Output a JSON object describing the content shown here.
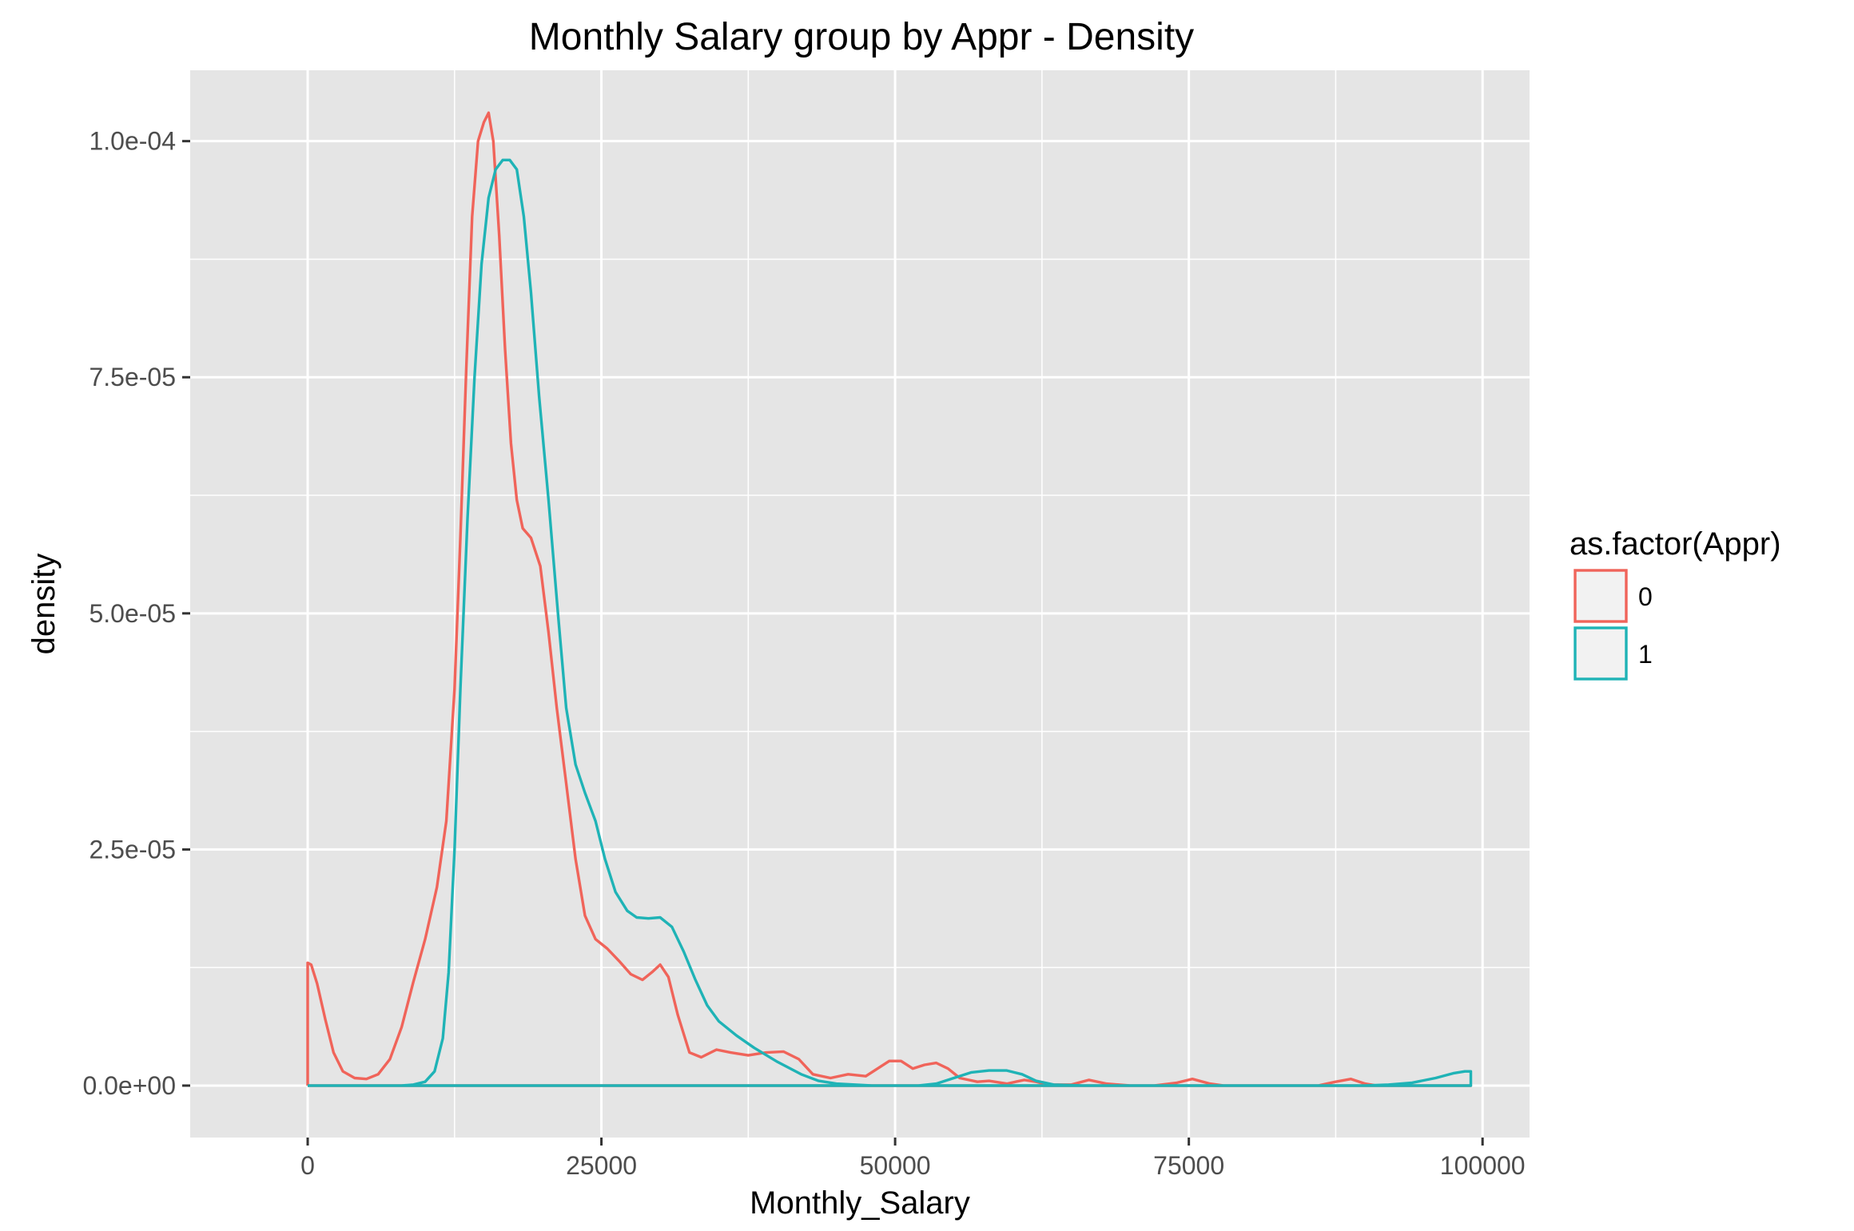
{
  "chart_data": {
    "type": "line",
    "title": "Monthly Salary group by Appr - Density",
    "xlabel": "Monthly_Salary",
    "ylabel": "density",
    "xlim": [
      -10000,
      104000
    ],
    "ylim": [
      -5.5e-06,
      0.0001075
    ],
    "x_ticks": [
      0,
      25000,
      50000,
      75000,
      100000
    ],
    "x_tick_labels": [
      "0",
      "25000",
      "50000",
      "75000",
      "100000"
    ],
    "y_ticks": [
      0,
      2.5e-05,
      5e-05,
      7.5e-05,
      0.0001
    ],
    "y_tick_labels": [
      "0.0e+00",
      "2.5e-05",
      "5.0e-05",
      "7.5e-05",
      "1.0e-04"
    ],
    "grid": true,
    "legend": {
      "title": "as.factor(Appr)",
      "position": "right"
    },
    "colors": {
      "panel_bg": "#e5e5e5",
      "grid": "#ffffff"
    },
    "series": [
      {
        "name": "0",
        "color": "#f0645a",
        "points": [
          [
            0,
            0
          ],
          [
            0,
            1.3e-05
          ],
          [
            300,
            1.28e-05
          ],
          [
            800,
            1.08e-05
          ],
          [
            1500,
            7e-06
          ],
          [
            2200,
            3.5e-06
          ],
          [
            3000,
            1.5e-06
          ],
          [
            4000,
            8e-07
          ],
          [
            5000,
            7e-07
          ],
          [
            6000,
            1.2e-06
          ],
          [
            7000,
            2.8e-06
          ],
          [
            8000,
            6.2e-06
          ],
          [
            9000,
            1.1e-05
          ],
          [
            10000,
            1.55e-05
          ],
          [
            11000,
            2.1e-05
          ],
          [
            11800,
            2.8e-05
          ],
          [
            12500,
            4.2e-05
          ],
          [
            13000,
            5.8e-05
          ],
          [
            13500,
            7.6e-05
          ],
          [
            14000,
            9.2e-05
          ],
          [
            14500,
            0.0001
          ],
          [
            15000,
            0.000102
          ],
          [
            15400,
            0.000103
          ],
          [
            15800,
            0.0001
          ],
          [
            16300,
            9e-05
          ],
          [
            16800,
            7.8e-05
          ],
          [
            17300,
            6.8e-05
          ],
          [
            17800,
            6.2e-05
          ],
          [
            18300,
            5.9e-05
          ],
          [
            19000,
            5.8e-05
          ],
          [
            19800,
            5.5e-05
          ],
          [
            20500,
            4.8e-05
          ],
          [
            21200,
            4e-05
          ],
          [
            22000,
            3.2e-05
          ],
          [
            22800,
            2.4e-05
          ],
          [
            23600,
            1.8e-05
          ],
          [
            24500,
            1.55e-05
          ],
          [
            25500,
            1.45e-05
          ],
          [
            26500,
            1.32e-05
          ],
          [
            27500,
            1.18e-05
          ],
          [
            28500,
            1.12e-05
          ],
          [
            29300,
            1.2e-05
          ],
          [
            30000,
            1.28e-05
          ],
          [
            30700,
            1.15e-05
          ],
          [
            31500,
            7.5e-06
          ],
          [
            32500,
            3.5e-06
          ],
          [
            33500,
            3e-06
          ],
          [
            34800,
            3.8e-06
          ],
          [
            36000,
            3.5e-06
          ],
          [
            37500,
            3.2e-06
          ],
          [
            39000,
            3.5e-06
          ],
          [
            40500,
            3.6e-06
          ],
          [
            41800,
            2.8e-06
          ],
          [
            43000,
            1.2e-06
          ],
          [
            44500,
            8e-07
          ],
          [
            46000,
            1.2e-06
          ],
          [
            47500,
            1e-06
          ],
          [
            48500,
            1.8e-06
          ],
          [
            49500,
            2.6e-06
          ],
          [
            50500,
            2.6e-06
          ],
          [
            51500,
            1.8e-06
          ],
          [
            52500,
            2.2e-06
          ],
          [
            53500,
            2.4e-06
          ],
          [
            54500,
            1.8e-06
          ],
          [
            55500,
            8e-07
          ],
          [
            57000,
            4e-07
          ],
          [
            58000,
            5e-07
          ],
          [
            59500,
            2e-07
          ],
          [
            61000,
            6e-07
          ],
          [
            62000,
            4e-07
          ],
          [
            63000,
            1e-07
          ],
          [
            65000,
            1e-07
          ],
          [
            66500,
            6e-07
          ],
          [
            68000,
            2e-07
          ],
          [
            70000,
            0
          ],
          [
            72000,
            0
          ],
          [
            74000,
            3e-07
          ],
          [
            75300,
            7e-07
          ],
          [
            76800,
            2e-07
          ],
          [
            78000,
            0
          ],
          [
            86000,
            0
          ],
          [
            87500,
            4e-07
          ],
          [
            88800,
            7e-07
          ],
          [
            90000,
            2e-07
          ],
          [
            91000,
            0
          ],
          [
            99000,
            0
          ],
          [
            0,
            0
          ]
        ]
      },
      {
        "name": "1",
        "color": "#1fb3b6",
        "points": [
          [
            0,
            0
          ],
          [
            8000,
            0
          ],
          [
            9000,
            1e-07
          ],
          [
            10000,
            4e-07
          ],
          [
            10800,
            1.5e-06
          ],
          [
            11500,
            5e-06
          ],
          [
            12000,
            1.2e-05
          ],
          [
            12500,
            2.5e-05
          ],
          [
            13000,
            4.2e-05
          ],
          [
            13600,
            6e-05
          ],
          [
            14200,
            7.5e-05
          ],
          [
            14800,
            8.7e-05
          ],
          [
            15400,
            9.4e-05
          ],
          [
            16000,
            9.7e-05
          ],
          [
            16600,
            9.8e-05
          ],
          [
            17200,
            9.8e-05
          ],
          [
            17800,
            9.7e-05
          ],
          [
            18400,
            9.2e-05
          ],
          [
            19000,
            8.4e-05
          ],
          [
            19700,
            7.3e-05
          ],
          [
            20500,
            6.2e-05
          ],
          [
            21300,
            5e-05
          ],
          [
            22000,
            4e-05
          ],
          [
            22800,
            3.4e-05
          ],
          [
            23600,
            3.1e-05
          ],
          [
            24500,
            2.8e-05
          ],
          [
            25300,
            2.4e-05
          ],
          [
            26200,
            2.05e-05
          ],
          [
            27200,
            1.85e-05
          ],
          [
            28000,
            1.78e-05
          ],
          [
            29000,
            1.77e-05
          ],
          [
            30000,
            1.78e-05
          ],
          [
            31000,
            1.68e-05
          ],
          [
            32000,
            1.42e-05
          ],
          [
            33000,
            1.12e-05
          ],
          [
            34000,
            8.5e-06
          ],
          [
            35000,
            6.8e-06
          ],
          [
            36500,
            5.3e-06
          ],
          [
            38000,
            4e-06
          ],
          [
            40000,
            2.5e-06
          ],
          [
            42000,
            1.2e-06
          ],
          [
            43500,
            5e-07
          ],
          [
            45000,
            2e-07
          ],
          [
            48000,
            0
          ],
          [
            52000,
            0
          ],
          [
            53500,
            2e-07
          ],
          [
            55000,
            8e-07
          ],
          [
            56500,
            1.4e-06
          ],
          [
            58000,
            1.6e-06
          ],
          [
            59500,
            1.6e-06
          ],
          [
            60800,
            1.2e-06
          ],
          [
            62000,
            5e-07
          ],
          [
            63500,
            1e-07
          ],
          [
            66000,
            0
          ],
          [
            90000,
            0
          ],
          [
            92000,
            1e-07
          ],
          [
            94000,
            3e-07
          ],
          [
            96000,
            8e-07
          ],
          [
            97500,
            1.3e-06
          ],
          [
            98500,
            1.5e-06
          ],
          [
            99000,
            1.5e-06
          ],
          [
            99000,
            0
          ],
          [
            0,
            0
          ]
        ]
      }
    ]
  }
}
